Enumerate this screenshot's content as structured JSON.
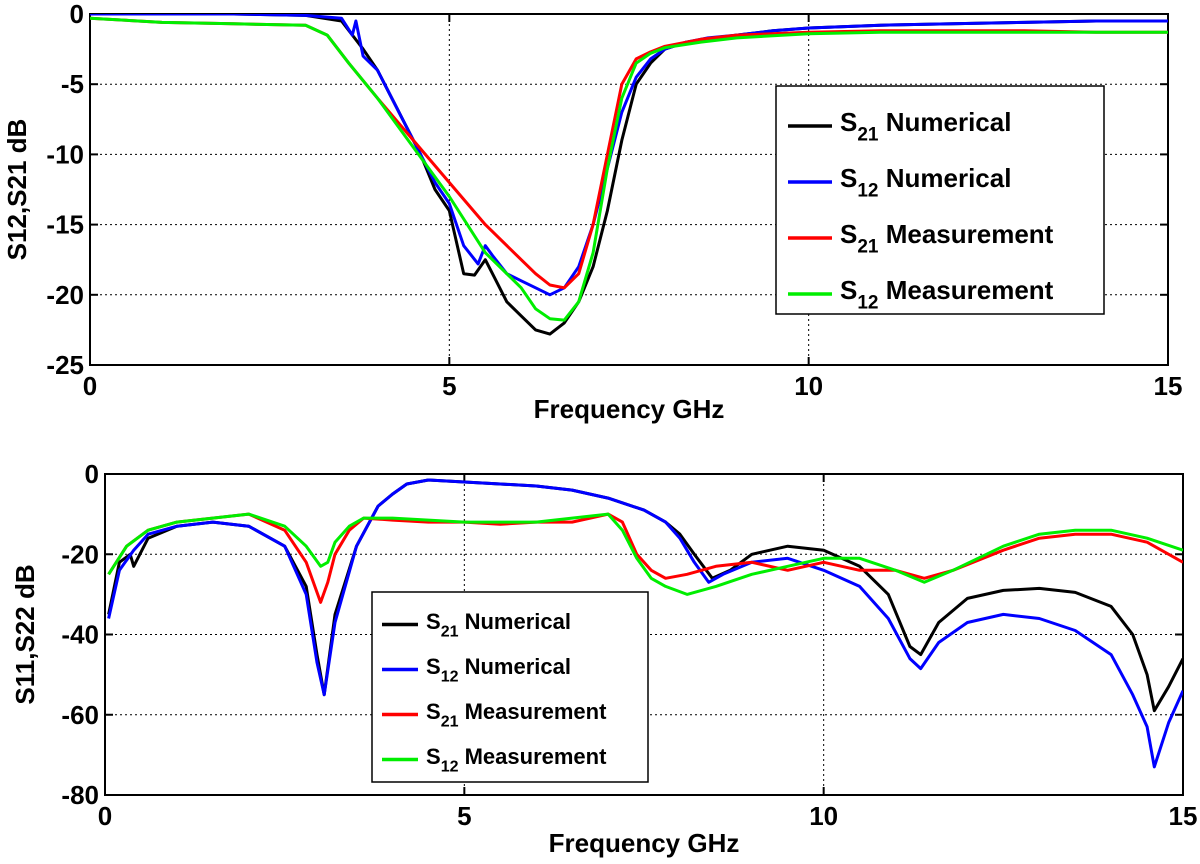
{
  "chart_data": [
    {
      "type": "line",
      "title": "",
      "xlabel": "Frequency GHz",
      "ylabel": "S12,S21 dB",
      "xlim": [
        0,
        15
      ],
      "ylim": [
        -25,
        0
      ],
      "xticks": [
        0,
        5,
        10,
        15
      ],
      "yticks": [
        0,
        -5,
        -10,
        -15,
        -20,
        -25
      ],
      "grid": true,
      "legend_position": "right",
      "series": [
        {
          "name": "S21 Numerical",
          "legend_main": "S",
          "legend_sub": "21",
          "legend_rest": "Numerical",
          "color": "#000000",
          "x": [
            0,
            1,
            2,
            3,
            3.5,
            3.8,
            4,
            4.4,
            4.6,
            4.8,
            5,
            5.2,
            5.35,
            5.5,
            5.6,
            5.8,
            6.0,
            6.2,
            6.4,
            6.6,
            6.8,
            7.0,
            7.2,
            7.4,
            7.6,
            7.8,
            8.0,
            8.3,
            8.6,
            9,
            9.5,
            10,
            11,
            12,
            13,
            14,
            15
          ],
          "y": [
            0,
            0,
            0,
            -0.1,
            -0.5,
            -2.5,
            -4,
            -8,
            -10,
            -12.5,
            -14,
            -18.5,
            -18.6,
            -17.5,
            -18.5,
            -20.5,
            -21.5,
            -22.5,
            -22.8,
            -22,
            -20.5,
            -18,
            -14,
            -9,
            -5,
            -3.5,
            -2.5,
            -2,
            -1.8,
            -1.5,
            -1.2,
            -1,
            -0.8,
            -0.7,
            -0.6,
            -0.5,
            -0.5
          ]
        },
        {
          "name": "S12 Numerical",
          "legend_main": "S",
          "legend_sub": "12",
          "legend_rest": "Numerical",
          "color": "#0000ff",
          "x": [
            0,
            1,
            2,
            3,
            3.5,
            3.65,
            3.7,
            3.8,
            4,
            4.4,
            4.6,
            4.8,
            5,
            5.2,
            5.4,
            5.5,
            5.6,
            5.8,
            6.0,
            6.2,
            6.4,
            6.6,
            6.8,
            7.0,
            7.2,
            7.4,
            7.6,
            7.8,
            8.0,
            8.3,
            8.6,
            9,
            9.5,
            10,
            11,
            12,
            13,
            14,
            15
          ],
          "y": [
            0,
            0,
            0,
            -0.1,
            -0.3,
            -1.5,
            -0.5,
            -3,
            -4,
            -8,
            -10,
            -12,
            -13.5,
            -16.5,
            -17.8,
            -16.5,
            -17.2,
            -18.5,
            -19,
            -19.5,
            -20,
            -19.5,
            -18,
            -15,
            -11,
            -7,
            -4.5,
            -3.2,
            -2.5,
            -2,
            -1.7,
            -1.5,
            -1.2,
            -1,
            -0.8,
            -0.7,
            -0.6,
            -0.5,
            -0.5
          ]
        },
        {
          "name": "S21 Measurement",
          "legend_main": "S",
          "legend_sub": "21",
          "legend_rest": "Measurement",
          "color": "#ff0000",
          "x": [
            0,
            1,
            2,
            3,
            3.3,
            3.6,
            4,
            4.5,
            5,
            5.5,
            6.0,
            6.2,
            6.4,
            6.6,
            6.8,
            7.0,
            7.2,
            7.4,
            7.6,
            7.8,
            8,
            8.5,
            9,
            10,
            11,
            12,
            13,
            14,
            15
          ],
          "y": [
            -0.3,
            -0.6,
            -0.7,
            -0.8,
            -1.5,
            -3.5,
            -6,
            -9,
            -12,
            -15,
            -17.5,
            -18.5,
            -19.3,
            -19.5,
            -18.5,
            -15,
            -10,
            -5,
            -3.2,
            -2.7,
            -2.3,
            -1.8,
            -1.5,
            -1.3,
            -1.2,
            -1.2,
            -1.2,
            -1.3,
            -1.3
          ]
        },
        {
          "name": "S12 Measurement",
          "legend_main": "S",
          "legend_sub": "12",
          "legend_rest": "Measurement",
          "color": "#00ee00",
          "x": [
            0,
            1,
            2,
            3,
            3.3,
            3.6,
            4,
            4.5,
            5,
            5.5,
            6.0,
            6.2,
            6.4,
            6.6,
            6.8,
            7.0,
            7.2,
            7.4,
            7.6,
            7.8,
            8,
            8.5,
            9,
            10,
            11,
            12,
            13,
            14,
            15
          ],
          "y": [
            -0.3,
            -0.6,
            -0.7,
            -0.8,
            -1.5,
            -3.5,
            -6,
            -9.5,
            -13,
            -17,
            -19.5,
            -21,
            -21.7,
            -21.8,
            -20.5,
            -17,
            -11,
            -6,
            -3.5,
            -2.8,
            -2.4,
            -2,
            -1.7,
            -1.4,
            -1.3,
            -1.3,
            -1.3,
            -1.3,
            -1.3
          ]
        }
      ]
    },
    {
      "type": "line",
      "title": "",
      "xlabel": "Frequency GHz",
      "ylabel": "S11,S22 dB",
      "xlim": [
        0,
        15
      ],
      "ylim": [
        -80,
        0
      ],
      "xticks": [
        0,
        5,
        10,
        15
      ],
      "yticks": [
        0,
        -20,
        -40,
        -60,
        -80
      ],
      "grid": true,
      "legend_position": "bottom-left",
      "series": [
        {
          "name": "S21 Numerical",
          "legend_main": "S",
          "legend_sub": "21",
          "legend_rest": "Numerical",
          "color": "#000000",
          "x": [
            0.05,
            0.2,
            0.35,
            0.4,
            0.6,
            1,
            1.5,
            2,
            2.5,
            2.8,
            2.95,
            3.05,
            3.2,
            3.5,
            3.8,
            4.0,
            4.2,
            4.5,
            5,
            5.5,
            6,
            6.5,
            7,
            7.5,
            7.8,
            8.0,
            8.2,
            8.45,
            8.7,
            9,
            9.5,
            10,
            10.5,
            10.9,
            11.2,
            11.35,
            11.6,
            12,
            12.5,
            13,
            13.5,
            14,
            14.3,
            14.5,
            14.6,
            14.8,
            15
          ],
          "y": [
            -35,
            -22,
            -20,
            -23,
            -16,
            -13,
            -12,
            -13,
            -18,
            -28,
            -45,
            -55,
            -35,
            -18,
            -8,
            -5,
            -2.5,
            -1.5,
            -2,
            -2.5,
            -3,
            -4,
            -6,
            -9,
            -12,
            -15,
            -20,
            -26,
            -24,
            -20,
            -18,
            -19,
            -23,
            -30,
            -43,
            -45,
            -37,
            -31,
            -29,
            -28.5,
            -29.5,
            -33,
            -40,
            -50,
            -59,
            -53,
            -46
          ]
        },
        {
          "name": "S12 Numerical",
          "legend_main": "S",
          "legend_sub": "12",
          "legend_rest": "Numerical",
          "color": "#0000ff",
          "x": [
            0.05,
            0.2,
            0.4,
            0.6,
            1,
            1.5,
            2,
            2.5,
            2.8,
            2.95,
            3.05,
            3.2,
            3.5,
            3.8,
            4.0,
            4.2,
            4.5,
            5,
            5.5,
            6,
            6.5,
            7,
            7.5,
            7.8,
            8.0,
            8.2,
            8.4,
            8.6,
            9,
            9.5,
            10,
            10.5,
            10.9,
            11.2,
            11.35,
            11.6,
            12,
            12.5,
            13,
            13.5,
            14,
            14.3,
            14.5,
            14.6,
            14.8,
            15
          ],
          "y": [
            -36,
            -24,
            -19,
            -15,
            -13,
            -12,
            -13,
            -18,
            -30,
            -47,
            -55,
            -37,
            -18,
            -8,
            -5,
            -2.5,
            -1.5,
            -2,
            -2.5,
            -3,
            -4,
            -6,
            -9,
            -12,
            -16,
            -22,
            -27,
            -25,
            -22,
            -21,
            -24,
            -28,
            -36,
            -46,
            -48.5,
            -42,
            -37,
            -35,
            -36,
            -39,
            -45,
            -55,
            -63,
            -73,
            -62,
            -54
          ]
        },
        {
          "name": "S21 Measurement",
          "legend_main": "S",
          "legend_sub": "21",
          "legend_rest": "Measurement",
          "color": "#ff0000",
          "x": [
            0.05,
            0.3,
            0.6,
            1,
            1.5,
            2,
            2.5,
            2.8,
            3.0,
            3.1,
            3.2,
            3.4,
            3.6,
            4,
            4.5,
            5,
            5.5,
            6,
            6.5,
            7,
            7.2,
            7.4,
            7.6,
            7.8,
            8.1,
            8.5,
            9,
            9.5,
            10,
            10.5,
            11,
            11.4,
            11.8,
            12.5,
            13,
            13.5,
            14,
            14.5,
            15
          ],
          "y": [
            -25,
            -18,
            -14,
            -12,
            -11,
            -10,
            -14,
            -22,
            -32,
            -27,
            -20,
            -14,
            -11,
            -11.5,
            -12,
            -12,
            -12.5,
            -12,
            -12,
            -10,
            -12,
            -20,
            -24,
            -26,
            -25,
            -23,
            -22,
            -24,
            -22,
            -24,
            -24,
            -26,
            -24,
            -19,
            -16,
            -15,
            -15,
            -17,
            -22
          ]
        },
        {
          "name": "S12 Measurement",
          "legend_main": "S",
          "legend_sub": "12",
          "legend_rest": "Measurement",
          "color": "#00ee00",
          "x": [
            0.05,
            0.3,
            0.6,
            1,
            1.5,
            2,
            2.5,
            2.8,
            3.0,
            3.1,
            3.2,
            3.4,
            3.6,
            4,
            4.5,
            5,
            5.5,
            6,
            6.5,
            7,
            7.2,
            7.4,
            7.6,
            7.8,
            8.1,
            8.5,
            9,
            9.5,
            10,
            10.5,
            11,
            11.4,
            11.8,
            12.5,
            13,
            13.5,
            14,
            14.5,
            15
          ],
          "y": [
            -25,
            -18,
            -14,
            -12,
            -11,
            -10,
            -13,
            -18,
            -23,
            -22,
            -17,
            -13,
            -11,
            -11,
            -11.5,
            -12,
            -12,
            -12,
            -11,
            -10,
            -14,
            -21,
            -26,
            -28,
            -30,
            -28,
            -25,
            -23,
            -21,
            -21,
            -24,
            -27,
            -24,
            -18,
            -15,
            -14,
            -14,
            -16,
            -19
          ]
        }
      ]
    }
  ]
}
